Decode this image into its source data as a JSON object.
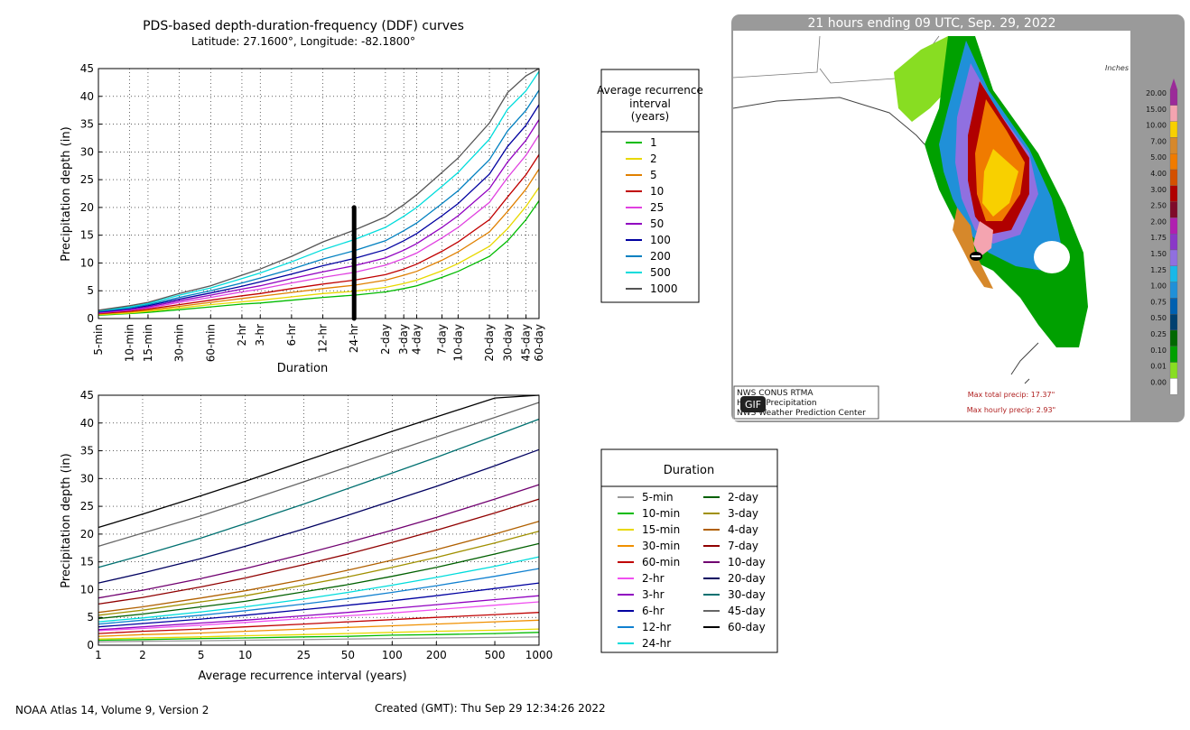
{
  "header": {
    "title": "PDS-based depth-duration-frequency (DDF) curves",
    "subtitle": "Latitude: 27.1600°, Longitude: -82.1800°"
  },
  "legend_ari": {
    "title_lines": [
      "Average recurrence",
      "interval",
      "(years)"
    ],
    "items": [
      {
        "label": "1",
        "color": "#00bb00"
      },
      {
        "label": "2",
        "color": "#e8d800"
      },
      {
        "label": "5",
        "color": "#e08000"
      },
      {
        "label": "10",
        "color": "#c00000"
      },
      {
        "label": "25",
        "color": "#e040e0"
      },
      {
        "label": "50",
        "color": "#9000c0"
      },
      {
        "label": "100",
        "color": "#0000a0"
      },
      {
        "label": "200",
        "color": "#0080c0"
      },
      {
        "label": "500",
        "color": "#00dcdc"
      },
      {
        "label": "1000",
        "color": "#555555"
      }
    ]
  },
  "legend_duration": {
    "title": "Duration",
    "items": [
      {
        "label": "5-min",
        "color": "#999999"
      },
      {
        "label": "10-min",
        "color": "#00bb00"
      },
      {
        "label": "15-min",
        "color": "#e8d800"
      },
      {
        "label": "30-min",
        "color": "#f09000"
      },
      {
        "label": "60-min",
        "color": "#c00000"
      },
      {
        "label": "2-hr",
        "color": "#f050f0"
      },
      {
        "label": "3-hr",
        "color": "#9000c0"
      },
      {
        "label": "6-hr",
        "color": "#0000a0"
      },
      {
        "label": "12-hr",
        "color": "#1080d0"
      },
      {
        "label": "24-hr",
        "color": "#00dcdc"
      },
      {
        "label": "2-day",
        "color": "#006000"
      },
      {
        "label": "3-day",
        "color": "#a09000"
      },
      {
        "label": "4-day",
        "color": "#b06000"
      },
      {
        "label": "7-day",
        "color": "#900000"
      },
      {
        "label": "10-day",
        "color": "#700070"
      },
      {
        "label": "20-day",
        "color": "#000060"
      },
      {
        "label": "30-day",
        "color": "#007070"
      },
      {
        "label": "45-day",
        "color": "#666666"
      },
      {
        "label": "60-day",
        "color": "#000000"
      }
    ]
  },
  "chart_data": [
    {
      "type": "line",
      "xlabel": "Duration",
      "ylabel": "Precipitation depth (in)",
      "ylim": [
        0,
        45
      ],
      "yticks": [
        0,
        5,
        10,
        15,
        20,
        25,
        30,
        35,
        40,
        45
      ],
      "categories": [
        "5-min",
        "10-min",
        "15-min",
        "30-min",
        "60-min",
        "2-hr",
        "3-hr",
        "6-hr",
        "12-hr",
        "24-hr",
        "2-day",
        "3-day",
        "4-day",
        "7-day",
        "10-day",
        "20-day",
        "30-day",
        "45-day",
        "60-day"
      ],
      "grid": true,
      "marker": {
        "category": "24-hr",
        "from": 0,
        "to": 20,
        "color": "#000000"
      },
      "series": [
        {
          "name": "1",
          "values": [
            0.6,
            0.9,
            1.1,
            1.6,
            2.1,
            2.6,
            2.8,
            3.3,
            3.8,
            4.2,
            4.8,
            5.4,
            5.9,
            7.4,
            8.5,
            11.2,
            14.0,
            17.8,
            21.2
          ]
        },
        {
          "name": "2",
          "values": [
            0.7,
            1.0,
            1.3,
            1.9,
            2.5,
            3.0,
            3.3,
            3.9,
            4.5,
            4.9,
            5.6,
            6.3,
            6.9,
            8.6,
            9.9,
            13.0,
            16.2,
            20.2,
            23.6
          ]
        },
        {
          "name": "5",
          "values": [
            0.8,
            1.2,
            1.5,
            2.2,
            2.9,
            3.6,
            4.0,
            4.7,
            5.4,
            6.0,
            6.9,
            7.8,
            8.5,
            10.5,
            12.0,
            15.6,
            19.3,
            23.3,
            26.9
          ]
        },
        {
          "name": "10",
          "values": [
            0.9,
            1.3,
            1.7,
            2.5,
            3.3,
            4.1,
            4.5,
            5.4,
            6.2,
            6.9,
            7.9,
            8.9,
            9.8,
            12.1,
            13.8,
            17.8,
            21.9,
            25.9,
            29.5
          ]
        },
        {
          "name": "25",
          "values": [
            1.0,
            1.5,
            1.9,
            2.9,
            3.8,
            4.8,
            5.3,
            6.4,
            7.4,
            8.3,
            9.6,
            10.8,
            11.8,
            14.5,
            16.4,
            20.9,
            25.4,
            29.4,
            33.1
          ]
        },
        {
          "name": "50",
          "values": [
            1.1,
            1.6,
            2.1,
            3.2,
            4.2,
            5.3,
            5.9,
            7.2,
            8.4,
            9.5,
            10.9,
            12.3,
            13.5,
            16.4,
            18.5,
            23.4,
            28.2,
            32.1,
            35.8
          ]
        },
        {
          "name": "100",
          "values": [
            1.2,
            1.8,
            2.3,
            3.5,
            4.6,
            5.8,
            6.6,
            8.0,
            9.5,
            10.8,
            12.4,
            14.0,
            15.3,
            18.5,
            20.7,
            26.0,
            31.0,
            34.8,
            38.5
          ]
        },
        {
          "name": "200",
          "values": [
            1.3,
            1.9,
            2.5,
            3.8,
            5.0,
            6.4,
            7.3,
            8.9,
            10.7,
            12.2,
            14.0,
            15.8,
            17.2,
            20.7,
            23.0,
            28.6,
            33.8,
            37.5,
            41.1
          ]
        },
        {
          "name": "500",
          "values": [
            1.4,
            2.1,
            2.7,
            4.2,
            5.5,
            7.2,
            8.2,
            10.2,
            12.4,
            14.2,
            16.4,
            18.4,
            20.0,
            23.8,
            26.3,
            32.3,
            37.7,
            41.0,
            44.5
          ]
        },
        {
          "name": "1000",
          "values": [
            1.5,
            2.3,
            2.9,
            4.5,
            5.9,
            7.8,
            8.9,
            11.2,
            13.8,
            15.9,
            18.3,
            20.5,
            22.3,
            26.3,
            28.9,
            35.2,
            40.7,
            43.7,
            47.0
          ]
        }
      ]
    },
    {
      "type": "line",
      "xlabel": "Average recurrence interval (years)",
      "ylabel": "Precipitation depth (in)",
      "ylim": [
        0,
        45
      ],
      "yticks": [
        0,
        5,
        10,
        15,
        20,
        25,
        30,
        35,
        40,
        45
      ],
      "x": [
        1,
        2,
        5,
        10,
        25,
        50,
        100,
        200,
        500,
        1000
      ],
      "xscale": "log",
      "grid": true,
      "series": [
        {
          "name": "5-min",
          "values": [
            0.6,
            0.7,
            0.8,
            0.9,
            1.0,
            1.1,
            1.2,
            1.3,
            1.4,
            1.5
          ]
        },
        {
          "name": "10-min",
          "values": [
            0.9,
            1.0,
            1.2,
            1.3,
            1.5,
            1.6,
            1.8,
            1.9,
            2.1,
            2.3
          ]
        },
        {
          "name": "15-min",
          "values": [
            1.1,
            1.3,
            1.5,
            1.7,
            1.9,
            2.1,
            2.3,
            2.5,
            2.7,
            2.9
          ]
        },
        {
          "name": "30-min",
          "values": [
            1.6,
            1.9,
            2.2,
            2.5,
            2.9,
            3.2,
            3.5,
            3.8,
            4.2,
            4.5
          ]
        },
        {
          "name": "60-min",
          "values": [
            2.1,
            2.5,
            2.9,
            3.3,
            3.8,
            4.2,
            4.6,
            5.0,
            5.5,
            5.9
          ]
        },
        {
          "name": "2-hr",
          "values": [
            2.6,
            3.0,
            3.6,
            4.1,
            4.8,
            5.3,
            5.8,
            6.4,
            7.2,
            7.8
          ]
        },
        {
          "name": "3-hr",
          "values": [
            2.8,
            3.3,
            4.0,
            4.5,
            5.3,
            5.9,
            6.6,
            7.3,
            8.2,
            8.9
          ]
        },
        {
          "name": "6-hr",
          "values": [
            3.3,
            3.9,
            4.7,
            5.4,
            6.4,
            7.2,
            8.0,
            8.9,
            10.2,
            11.2
          ]
        },
        {
          "name": "12-hr",
          "values": [
            3.8,
            4.5,
            5.4,
            6.2,
            7.4,
            8.4,
            9.5,
            10.7,
            12.4,
            13.8
          ]
        },
        {
          "name": "24-hr",
          "values": [
            4.2,
            4.9,
            6.0,
            6.9,
            8.3,
            9.5,
            10.8,
            12.2,
            14.2,
            15.9
          ]
        },
        {
          "name": "2-day",
          "values": [
            4.8,
            5.6,
            6.9,
            7.9,
            9.6,
            10.9,
            12.4,
            14.0,
            16.4,
            18.3
          ]
        },
        {
          "name": "3-day",
          "values": [
            5.4,
            6.3,
            7.8,
            8.9,
            10.8,
            12.3,
            14.0,
            15.8,
            18.4,
            20.5
          ]
        },
        {
          "name": "4-day",
          "values": [
            5.9,
            6.9,
            8.5,
            9.8,
            11.8,
            13.5,
            15.3,
            17.2,
            20.0,
            22.3
          ]
        },
        {
          "name": "7-day",
          "values": [
            7.4,
            8.6,
            10.5,
            12.1,
            14.5,
            16.4,
            18.5,
            20.7,
            23.8,
            26.3
          ]
        },
        {
          "name": "10-day",
          "values": [
            8.5,
            9.9,
            12.0,
            13.8,
            16.4,
            18.5,
            20.7,
            23.0,
            26.3,
            28.9
          ]
        },
        {
          "name": "20-day",
          "values": [
            11.2,
            13.0,
            15.6,
            17.8,
            20.9,
            23.4,
            26.0,
            28.6,
            32.3,
            35.2
          ]
        },
        {
          "name": "30-day",
          "values": [
            14.0,
            16.2,
            19.3,
            21.9,
            25.4,
            28.2,
            31.0,
            33.8,
            37.7,
            40.7
          ]
        },
        {
          "name": "45-day",
          "values": [
            17.8,
            20.2,
            23.3,
            25.9,
            29.4,
            32.1,
            34.8,
            37.5,
            41.0,
            43.7
          ]
        },
        {
          "name": "60-day",
          "values": [
            21.2,
            23.6,
            26.9,
            29.5,
            33.1,
            35.8,
            38.5,
            41.1,
            44.5,
            47.0
          ]
        }
      ]
    }
  ],
  "map": {
    "title": "21 hours ending 09 UTC, Sep. 29, 2022",
    "units": "Inches",
    "scale": [
      {
        "label": "20.00",
        "color": "#9b2a99"
      },
      {
        "label": "15.00",
        "color": "#f4a4b0"
      },
      {
        "label": "10.00",
        "color": "#f8d000"
      },
      {
        "label": "7.00",
        "color": "#d6882b"
      },
      {
        "label": "5.00",
        "color": "#f07b00"
      },
      {
        "label": "4.00",
        "color": "#d45000"
      },
      {
        "label": "3.00",
        "color": "#b00000"
      },
      {
        "label": "2.50",
        "color": "#7f0a2a"
      },
      {
        "label": "2.00",
        "color": "#b020b0"
      },
      {
        "label": "1.75",
        "color": "#8a38c8"
      },
      {
        "label": "1.50",
        "color": "#9070e0"
      },
      {
        "label": "1.25",
        "color": "#18b8e8"
      },
      {
        "label": "1.00",
        "color": "#2090d8"
      },
      {
        "label": "0.75",
        "color": "#0060b0"
      },
      {
        "label": "0.50",
        "color": "#004070"
      },
      {
        "label": "0.25",
        "color": "#006800"
      },
      {
        "label": "0.10",
        "color": "#00a000"
      },
      {
        "label": "0.01",
        "color": "#88dd22"
      },
      {
        "label": "0.00",
        "color": "#ffffff"
      }
    ],
    "source_lines": [
      "NWS CONUS RTMA",
      "Hourly Precipitation",
      "NWS Weather Prediction Center"
    ],
    "gif_badge": "GIF",
    "max_total": "Max total precip: 17.37\"",
    "max_hourly": "Max hourly precip: 2.93\""
  },
  "footer": {
    "left": "NOAA Atlas 14, Volume 9, Version 2",
    "created": "Created (GMT): Thu Sep 29 12:34:26 2022"
  }
}
